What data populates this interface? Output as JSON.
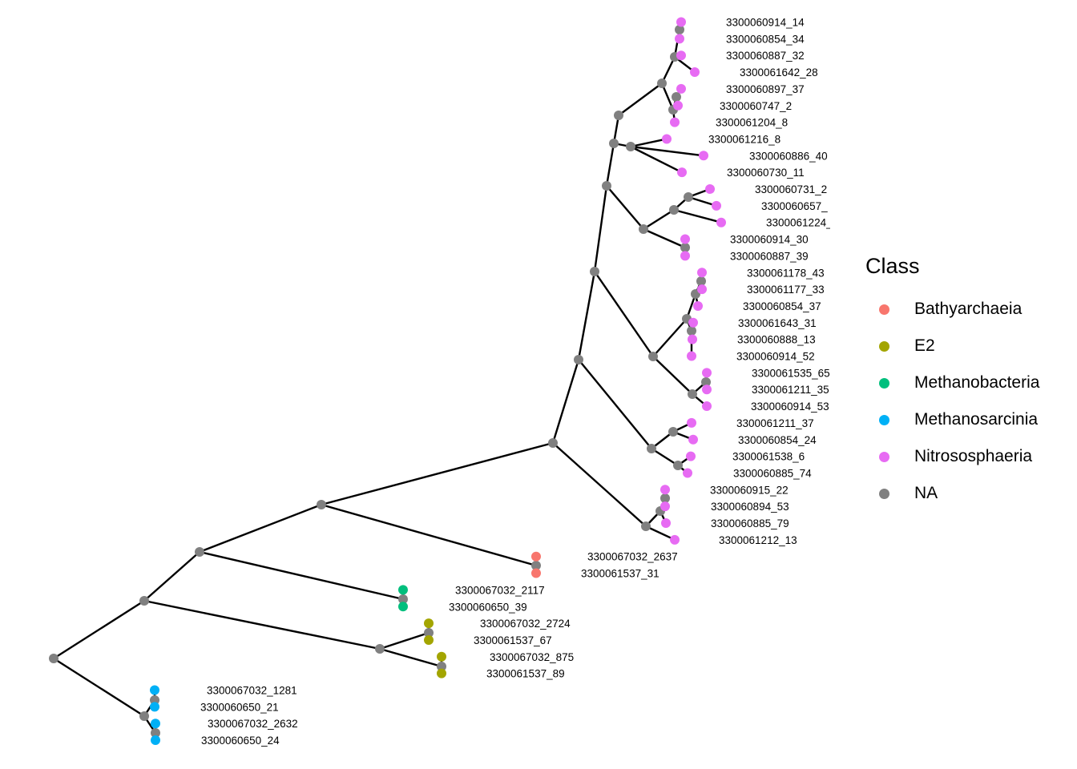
{
  "legend": {
    "title": "Class",
    "items": [
      {
        "label": "Bathyarchaeia",
        "color": "#F8766D"
      },
      {
        "label": "E2",
        "color": "#A3A500"
      },
      {
        "label": "Methanobacteria",
        "color": "#00BF7D"
      },
      {
        "label": "Methanosarcinia",
        "color": "#00B0F6"
      },
      {
        "label": "Nitrososphaeria",
        "color": "#E76BF3"
      },
      {
        "label": "NA",
        "color": "#808080"
      }
    ]
  },
  "tree": {
    "tips": [
      {
        "label": "3300060914_14",
        "class": "Nitrososphaeria"
      },
      {
        "label": "3300060854_34",
        "class": "Nitrososphaeria"
      },
      {
        "label": "3300060887_32",
        "class": "Nitrososphaeria"
      },
      {
        "label": "3300061642_28",
        "class": "Nitrososphaeria"
      },
      {
        "label": "3300060897_37",
        "class": "Nitrososphaeria"
      },
      {
        "label": "3300060747_2",
        "class": "Nitrososphaeria"
      },
      {
        "label": "3300061204_8",
        "class": "Nitrososphaeria"
      },
      {
        "label": "3300061216_8",
        "class": "Nitrososphaeria"
      },
      {
        "label": "3300060886_40",
        "class": "Nitrososphaeria"
      },
      {
        "label": "3300060730_11",
        "class": "Nitrososphaeria"
      },
      {
        "label": "3300060731_2",
        "class": "Nitrososphaeria"
      },
      {
        "label": "3300060657_",
        "class": "Nitrososphaeria"
      },
      {
        "label": "3300061224_",
        "class": "Nitrososphaeria"
      },
      {
        "label": "3300060914_30",
        "class": "Nitrososphaeria"
      },
      {
        "label": "3300060887_39",
        "class": "Nitrososphaeria"
      },
      {
        "label": "3300061178_43",
        "class": "Nitrososphaeria"
      },
      {
        "label": "3300061177_33",
        "class": "Nitrososphaeria"
      },
      {
        "label": "3300060854_37",
        "class": "Nitrososphaeria"
      },
      {
        "label": "3300061643_31",
        "class": "Nitrososphaeria"
      },
      {
        "label": "3300060888_13",
        "class": "Nitrososphaeria"
      },
      {
        "label": "3300060914_52",
        "class": "Nitrososphaeria"
      },
      {
        "label": "3300061535_65",
        "class": "Nitrososphaeria"
      },
      {
        "label": "3300061211_35",
        "class": "Nitrososphaeria"
      },
      {
        "label": "3300060914_53",
        "class": "Nitrososphaeria"
      },
      {
        "label": "3300061211_37",
        "class": "Nitrososphaeria"
      },
      {
        "label": "3300060854_24",
        "class": "Nitrososphaeria"
      },
      {
        "label": "3300061538_6",
        "class": "Nitrososphaeria"
      },
      {
        "label": "3300060885_74",
        "class": "Nitrososphaeria"
      },
      {
        "label": "3300060915_22",
        "class": "Nitrososphaeria"
      },
      {
        "label": "3300060894_53",
        "class": "Nitrososphaeria"
      },
      {
        "label": "3300060885_79",
        "class": "Nitrososphaeria"
      },
      {
        "label": "3300061212_13",
        "class": "Nitrososphaeria"
      },
      {
        "label": "3300067032_2637",
        "class": "Bathyarchaeia"
      },
      {
        "label": "3300061537_31",
        "class": "Bathyarchaeia"
      },
      {
        "label": "3300067032_2117",
        "class": "Methanobacteria"
      },
      {
        "label": "3300060650_39",
        "class": "Methanobacteria"
      },
      {
        "label": "3300067032_2724",
        "class": "E2"
      },
      {
        "label": "3300061537_67",
        "class": "E2"
      },
      {
        "label": "3300067032_875",
        "class": "E2"
      },
      {
        "label": "3300061537_89",
        "class": "E2"
      },
      {
        "label": "3300067032_1281",
        "class": "Methanosarcinia"
      },
      {
        "label": "3300060650_21",
        "class": "Methanosarcinia"
      },
      {
        "label": "3300067032_2632",
        "class": "Methanosarcinia"
      },
      {
        "label": "3300060650_24",
        "class": "Methanosarcinia"
      }
    ]
  }
}
